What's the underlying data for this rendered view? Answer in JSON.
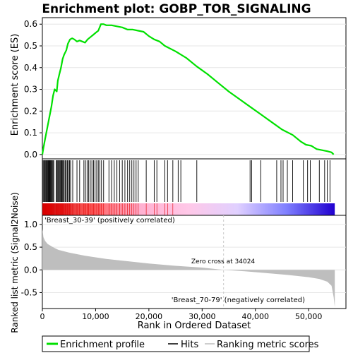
{
  "title": "Enrichment plot: GOBP_TOR_SIGNALING",
  "colors": {
    "es_line": "#00e000",
    "hit": "#000000",
    "metric_fill": "#bebebe",
    "pos_label": "#c00000",
    "neg_label": "#2020c0",
    "frame": "#000000",
    "grid": "#e6e6e6"
  },
  "chart_data": {
    "type": "line",
    "top_panel": {
      "ylabel": "Enrichment score (ES)",
      "ylim": [
        -0.02,
        0.63
      ],
      "yticks": [
        0.0,
        0.1,
        0.2,
        0.3,
        0.4,
        0.5,
        0.6
      ],
      "ytick_labels": [
        "0.0",
        "0.1",
        "0.2",
        "0.3",
        "0.4",
        "0.5",
        "0.6"
      ],
      "xlim": [
        0,
        57000
      ],
      "series_name": "Enrichment profile",
      "es_points": [
        [
          0,
          0.0
        ],
        [
          200,
          0.03
        ],
        [
          500,
          0.07
        ],
        [
          900,
          0.12
        ],
        [
          1300,
          0.17
        ],
        [
          1700,
          0.22
        ],
        [
          2000,
          0.27
        ],
        [
          2300,
          0.3
        ],
        [
          2700,
          0.29
        ],
        [
          2900,
          0.34
        ],
        [
          3200,
          0.37
        ],
        [
          3500,
          0.4
        ],
        [
          3800,
          0.44
        ],
        [
          4100,
          0.46
        ],
        [
          4500,
          0.48
        ],
        [
          4800,
          0.51
        ],
        [
          5200,
          0.53
        ],
        [
          5600,
          0.535
        ],
        [
          6000,
          0.53
        ],
        [
          6500,
          0.52
        ],
        [
          7000,
          0.525
        ],
        [
          7500,
          0.52
        ],
        [
          8000,
          0.515
        ],
        [
          8500,
          0.53
        ],
        [
          9000,
          0.54
        ],
        [
          9500,
          0.55
        ],
        [
          10000,
          0.56
        ],
        [
          10500,
          0.57
        ],
        [
          11000,
          0.6
        ],
        [
          11500,
          0.6
        ],
        [
          12000,
          0.595
        ],
        [
          13000,
          0.595
        ],
        [
          14000,
          0.59
        ],
        [
          15000,
          0.585
        ],
        [
          16000,
          0.575
        ],
        [
          17000,
          0.575
        ],
        [
          18000,
          0.57
        ],
        [
          19000,
          0.565
        ],
        [
          20000,
          0.545
        ],
        [
          21000,
          0.53
        ],
        [
          22000,
          0.52
        ],
        [
          23000,
          0.5
        ],
        [
          25000,
          0.475
        ],
        [
          27000,
          0.445
        ],
        [
          29000,
          0.405
        ],
        [
          31000,
          0.37
        ],
        [
          33000,
          0.33
        ],
        [
          35000,
          0.29
        ],
        [
          37000,
          0.255
        ],
        [
          39000,
          0.22
        ],
        [
          41000,
          0.185
        ],
        [
          43000,
          0.15
        ],
        [
          45000,
          0.115
        ],
        [
          47000,
          0.09
        ],
        [
          48500,
          0.06
        ],
        [
          49500,
          0.045
        ],
        [
          50500,
          0.04
        ],
        [
          51500,
          0.025
        ],
        [
          52500,
          0.02
        ],
        [
          53500,
          0.015
        ],
        [
          54300,
          0.01
        ],
        [
          54700,
          0.0
        ]
      ]
    },
    "hits_panel": {
      "series_name": "Hits",
      "hit_ranks": [
        150,
        300,
        420,
        560,
        700,
        820,
        950,
        1080,
        1200,
        1320,
        1450,
        1580,
        1700,
        1850,
        2000,
        2150,
        2600,
        2750,
        2900,
        3050,
        3200,
        3350,
        3500,
        3650,
        3800,
        3950,
        4100,
        4300,
        4500,
        4700,
        4900,
        5100,
        5300,
        5700,
        6500,
        7000,
        7800,
        8100,
        8400,
        8700,
        9000,
        9300,
        9600,
        9900,
        10200,
        10500,
        10800,
        11100,
        11500,
        12500,
        13000,
        13500,
        14000,
        14500,
        15000,
        15500,
        16000,
        16400,
        16800,
        17200,
        17600,
        18000,
        19500,
        21000,
        21500,
        23000,
        23500,
        24500,
        25500,
        26000,
        29000,
        39000,
        39300,
        41000,
        44000,
        44800,
        45200,
        46000,
        47000,
        49000,
        49800,
        50300,
        52000,
        53000,
        53500,
        54000
      ],
      "pos_label": "'Breast_30-39' (positively correlated)",
      "gradient_stops": [
        "#cc0000",
        "#ff6060",
        "#ffb0d0",
        "#ffc8e8",
        "#e0d0ff",
        "#8080ff",
        "#2000d0"
      ]
    },
    "metric_panel": {
      "ylabel": "Ranked list metric (Signal2Noise)",
      "ylim": [
        -0.85,
        1.2
      ],
      "yticks": [
        -0.5,
        0.0,
        0.5,
        1.0
      ],
      "ytick_labels": [
        "-0.5",
        "0.0",
        "0.5",
        "1.0"
      ],
      "series_name": "Ranking metric scores",
      "metric_points": [
        [
          0,
          0.9
        ],
        [
          200,
          0.72
        ],
        [
          500,
          0.64
        ],
        [
          1000,
          0.57
        ],
        [
          2000,
          0.5
        ],
        [
          3000,
          0.44
        ],
        [
          5000,
          0.38
        ],
        [
          8000,
          0.31
        ],
        [
          12000,
          0.24
        ],
        [
          16000,
          0.19
        ],
        [
          20000,
          0.14
        ],
        [
          25000,
          0.09
        ],
        [
          30000,
          0.05
        ],
        [
          34024,
          0.0
        ],
        [
          38000,
          -0.03
        ],
        [
          42000,
          -0.07
        ],
        [
          46000,
          -0.11
        ],
        [
          50000,
          -0.16
        ],
        [
          52000,
          -0.2
        ],
        [
          53500,
          -0.26
        ],
        [
          54300,
          -0.35
        ],
        [
          54700,
          -0.6
        ],
        [
          54900,
          -0.82
        ]
      ],
      "zero_cross_label": "Zero cross at 34024",
      "zero_cross_rank": 34024,
      "neg_label": "'Breast_70-79' (negatively correlated)"
    },
    "xlabel": "Rank in Ordered Dataset",
    "xticks": [
      0,
      10000,
      20000,
      30000,
      40000,
      50000
    ],
    "xtick_labels": [
      "0",
      "10,000",
      "20,000",
      "30,000",
      "40,000",
      "50,000"
    ],
    "legend": {
      "placement": "bottom",
      "entries": [
        "Enrichment profile",
        "Hits",
        "Ranking metric scores"
      ]
    }
  }
}
